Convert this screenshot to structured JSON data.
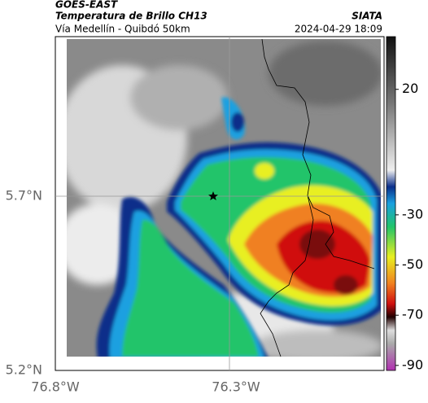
{
  "header": {
    "satellite": "GOES-EAST",
    "product": "Temperatura de Brillo CH13",
    "source": "SIATA",
    "route": "Vía Medellín - Quibdó 50km",
    "timestamp": "2024-04-29 18:09"
  },
  "axes": {
    "lat_labels": [
      "5.7°N",
      "5.2°N"
    ],
    "lon_labels": [
      "76.8°W",
      "76.3°W"
    ]
  },
  "colorbar": {
    "range": [
      41,
      -92
    ],
    "ticks": [
      20,
      -30,
      -50,
      -70,
      -90
    ]
  }
}
